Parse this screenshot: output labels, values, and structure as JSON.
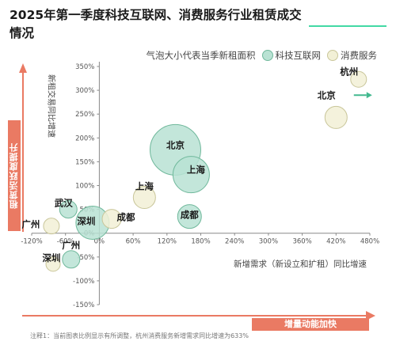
{
  "title": "2025年第一季度科技互联网、消费服务行业租赁成交情况",
  "legend": {
    "note": "气泡大小代表当季新租面积",
    "items": [
      {
        "name": "科技互联网",
        "color": "#b9e2d3",
        "stroke": "#6fb89b"
      },
      {
        "name": "消费服务",
        "color": "#f2f0d6",
        "stroke": "#c9c69a"
      }
    ]
  },
  "side_tags": {
    "y": "租赁活跃度提升",
    "x": "增量动能加快"
  },
  "footnote": "注释1：当前图表比例显示有所调整，杭州消费服务新增需求同比增速为633%",
  "chart_data": {
    "type": "scatter",
    "title": "2025年第一季度科技互联网、消费服务行业租赁成交情况",
    "xlabel": "新增需求（新设立和扩租）同比增速",
    "ylabel": "新租交易同比增速",
    "xlim": [
      -120,
      480
    ],
    "ylim": [
      -150,
      350
    ],
    "x_ticks": [
      "-120%",
      "-60%",
      "0%",
      "60%",
      "120%",
      "180%",
      "240%",
      "300%",
      "360%",
      "420%",
      "480%"
    ],
    "y_ticks": [
      "350%",
      "300%",
      "250%",
      "200%",
      "150%",
      "100%",
      "50%",
      "0%",
      "-50%",
      "-100%",
      "-150%"
    ],
    "series": [
      {
        "name": "科技互联网",
        "color": "#b9e2d3",
        "points": [
          {
            "label": "北京",
            "x": 135,
            "y": 175,
            "size": 32
          },
          {
            "label": "上海",
            "x": 163,
            "y": 123,
            "size": 23
          },
          {
            "label": "成都",
            "x": 160,
            "y": 35,
            "size": 15
          },
          {
            "label": "深圳",
            "x": -12,
            "y": 22,
            "size": 21
          },
          {
            "label": "武汉",
            "x": -55,
            "y": 50,
            "size": 11
          },
          {
            "label": "广州",
            "x": -50,
            "y": -55,
            "size": 11
          }
        ]
      },
      {
        "name": "消费服务",
        "color": "#f2f0d6",
        "points": [
          {
            "label": "杭州",
            "x": 460,
            "y": 323,
            "size": 10
          },
          {
            "label": "北京",
            "x": 420,
            "y": 243,
            "size": 14
          },
          {
            "label": "上海",
            "x": 80,
            "y": 75,
            "size": 14
          },
          {
            "label": "成都",
            "x": 22,
            "y": 30,
            "size": 12
          },
          {
            "label": "广州",
            "x": -85,
            "y": 15,
            "size": 10
          },
          {
            "label": "深圳",
            "x": -82,
            "y": -65,
            "size": 9
          }
        ]
      }
    ]
  }
}
